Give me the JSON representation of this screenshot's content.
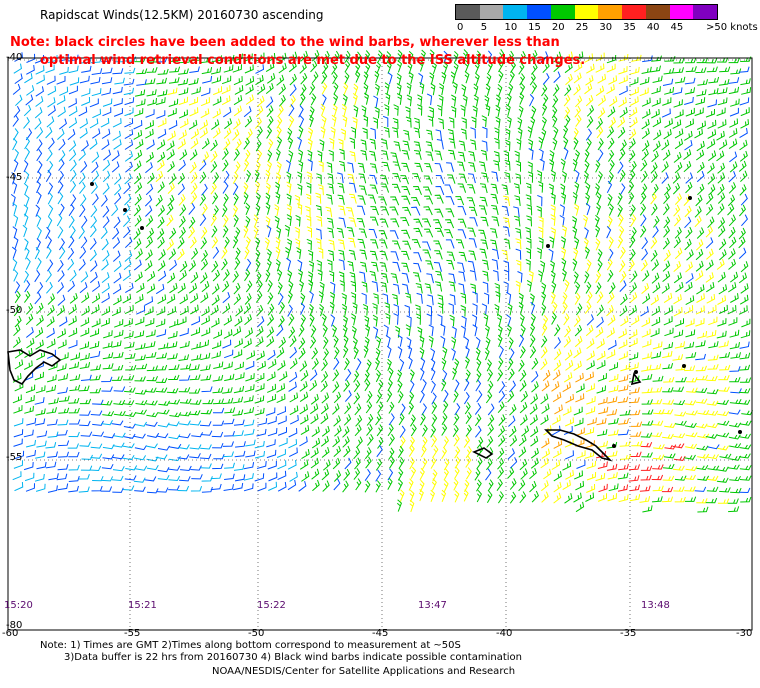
{
  "header": {
    "title": "Rapidscat Winds(12.5KM) 20160730 ascending",
    "note_line1": "Note: black circles have been added to the wind barbs, wherever less than",
    "note_line2": "optimal wind retrieval conditions are met due to the ISS altitude changes."
  },
  "legend": {
    "unit": ">50 knots",
    "bins": [
      {
        "label": "0",
        "color": "#5a5a5a"
      },
      {
        "label": "5",
        "color": "#a8a8a8"
      },
      {
        "label": "10",
        "color": "#00b4f0"
      },
      {
        "label": "15",
        "color": "#0050ff"
      },
      {
        "label": "20",
        "color": "#00c800"
      },
      {
        "label": "25",
        "color": "#ffff00"
      },
      {
        "label": "30",
        "color": "#ffa000"
      },
      {
        "label": "35",
        "color": "#ff2020"
      },
      {
        "label": "40",
        "color": "#8b4513"
      },
      {
        "label": "45",
        "color": "#ff00ff"
      },
      {
        "label": "",
        "color": "#8000c0"
      }
    ]
  },
  "map": {
    "lat_labels": [
      "-40",
      "-45",
      "-50",
      "-55",
      "-80"
    ],
    "lon_labels": [
      "-60",
      "-55",
      "-50",
      "-45",
      "-40",
      "-35",
      "-30"
    ],
    "pass_times": [
      "15:20",
      "15:21",
      "15:22",
      "13:47",
      "13:48"
    ]
  },
  "footer": {
    "note1": "Note: 1) Times are GMT 2)Times along bottom correspond to measurement at ~50S",
    "note2": "3)Data buffer is 22 hrs from 20160730 4) Black wind barbs indicate possible contamination",
    "credit": "NOAA/NESDIS/Center for Satellite Applications and Research"
  }
}
